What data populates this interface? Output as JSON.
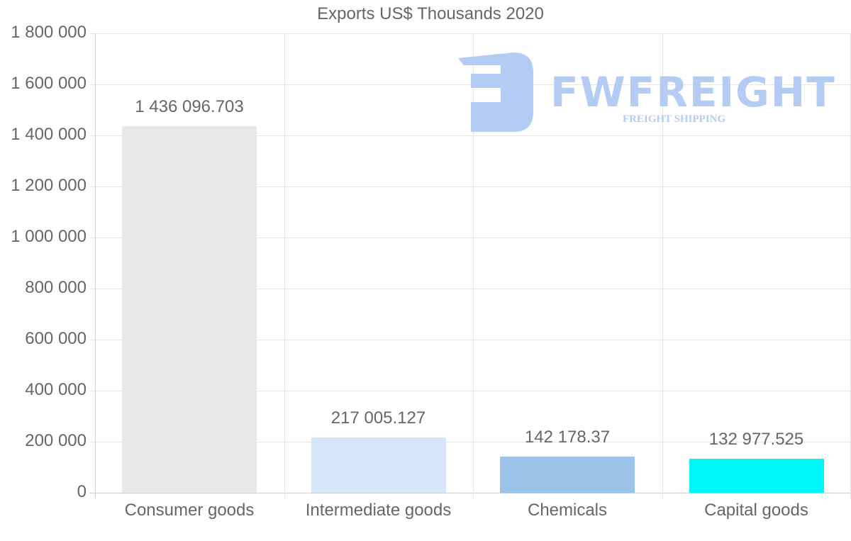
{
  "chart_data": {
    "type": "bar",
    "title": "Exports US$ Thousands 2020",
    "xlabel": "",
    "ylabel": "",
    "categories": [
      "Consumer goods",
      "Intermediate goods",
      "Chemicals",
      "Capital goods"
    ],
    "values": [
      1436096.703,
      217005.127,
      142178.37,
      132977.525
    ],
    "value_labels": [
      "1 436 096.703",
      "217 005.127",
      "142 178.37",
      "132 977.525"
    ],
    "colors": [
      "#e8e8e8",
      "#d6e6f8",
      "#9cc4e8",
      "#00f7f7"
    ],
    "ylim": [
      0,
      1800000
    ],
    "yticks": [
      0,
      200000,
      400000,
      600000,
      800000,
      1000000,
      1200000,
      1400000,
      1600000,
      1800000
    ],
    "ytick_labels": [
      "0",
      "200 000",
      "400 000",
      "600 000",
      "800 000",
      "1 000 000",
      "1 200 000",
      "1 400 000",
      "1 600 000",
      "1 800 000"
    ],
    "grid": true,
    "legend": null
  },
  "watermark": {
    "brand": "FWFREIGHT",
    "tagline": "FREIGHT SHIPPING",
    "color": "#b0c9f3"
  }
}
